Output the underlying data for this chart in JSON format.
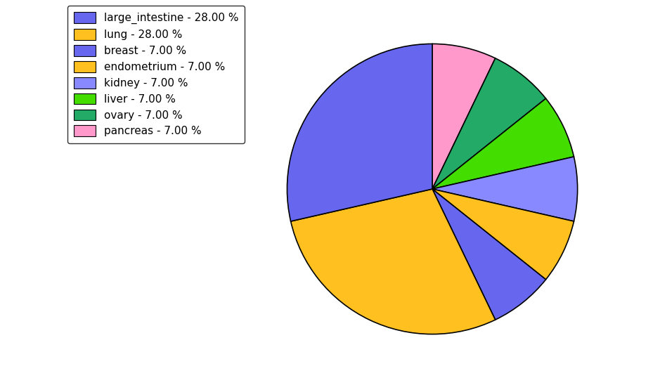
{
  "labels": [
    "large_intestine",
    "lung",
    "breast",
    "endometrium",
    "kidney",
    "liver",
    "ovary",
    "pancreas"
  ],
  "values": [
    28,
    28,
    7,
    7,
    7,
    7,
    7,
    7
  ],
  "legend_labels": [
    "large_intestine - 28.00 %",
    "lung - 28.00 %",
    "breast - 7.00 %",
    "endometrium - 7.00 %",
    "kidney - 7.00 %",
    "liver - 7.00 %",
    "ovary - 7.00 %",
    "pancreas - 7.00 %"
  ],
  "label_to_color": {
    "large_intestine": "#6666EE",
    "lung": "#FFC020",
    "breast": "#6666EE",
    "endometrium": "#FFC020",
    "kidney": "#8888FF",
    "liver": "#44DD00",
    "ovary": "#22AA66",
    "pancreas": "#FF99CC"
  },
  "pie_order": [
    "pancreas",
    "ovary",
    "liver",
    "kidney",
    "endometrium",
    "breast",
    "lung",
    "large_intestine"
  ],
  "pie_values": [
    7,
    7,
    7,
    7,
    7,
    7,
    28,
    28
  ],
  "startangle": 90,
  "figsize": [
    9.39,
    5.38
  ],
  "dpi": 100
}
